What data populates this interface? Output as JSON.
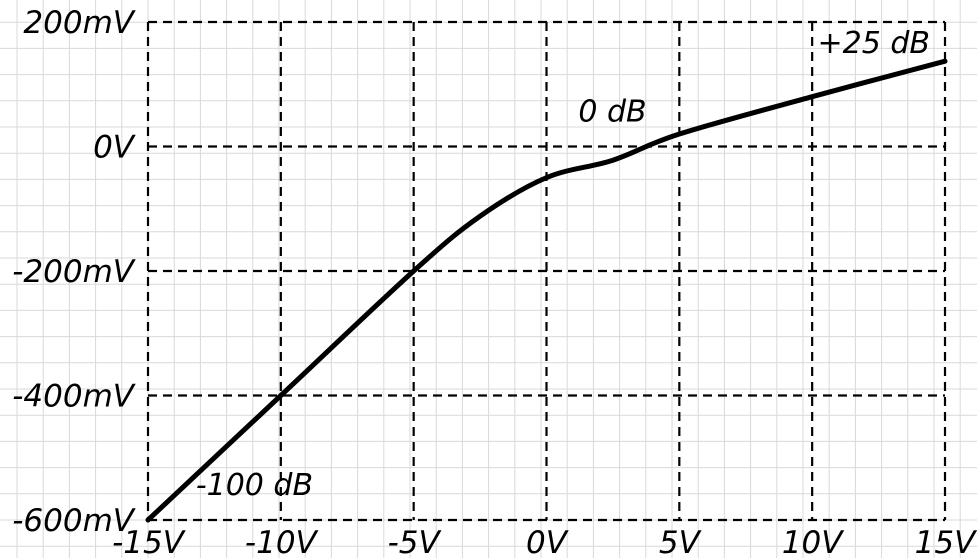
{
  "chart_data": {
    "type": "line",
    "title": "",
    "xlabel": "",
    "ylabel": "",
    "xlim": [
      -15,
      15
    ],
    "ylim": [
      -600,
      200
    ],
    "x_ticks": [
      -15,
      -10,
      -5,
      0,
      5,
      10,
      15
    ],
    "x_tick_labels": [
      "-15V",
      "-10V",
      "-5V",
      "0V",
      "5V",
      "10V",
      "15V"
    ],
    "y_ticks": [
      200,
      0,
      -200,
      -400,
      -600
    ],
    "y_tick_labels": [
      "200mV",
      "0V",
      "-200mV",
      "-400mV",
      "-600mV"
    ],
    "grid": true,
    "series": [
      {
        "x": [
          -15,
          -10,
          -5,
          -2.5,
          0,
          2.5,
          5,
          10,
          15
        ],
        "y": [
          -600,
          -400,
          -200,
          -112,
          -50,
          -22,
          20,
          80,
          137
        ]
      }
    ],
    "annotations": [
      {
        "text": "-100 dB",
        "x": -13.2,
        "y": -560
      },
      {
        "text": "0 dB",
        "x": 1.2,
        "y": 40
      },
      {
        "text": "+25 dB",
        "x": 10.2,
        "y": 150
      }
    ],
    "colors": {
      "line": "#000000",
      "grid": "#000000",
      "minor_grid": "#d9d9d9",
      "background": "#ffffff"
    }
  }
}
